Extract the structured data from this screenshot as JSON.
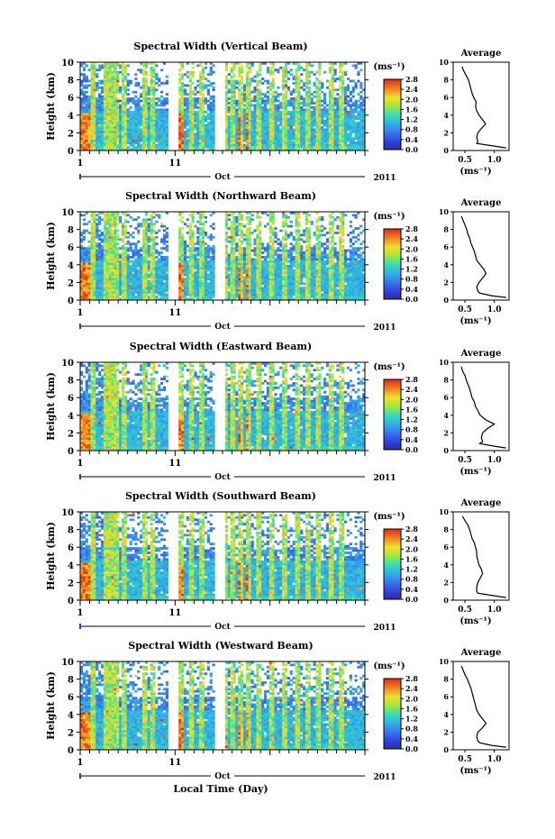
{
  "figure": {
    "xlabel": "Local Time (Day)",
    "year_label": "2011",
    "month_label": "Oct",
    "colorbar_unit_label": "(ms⁻¹)",
    "average_title": "Average",
    "average_xlabel": "(ms⁻¹)"
  },
  "chart_data": [
    {
      "type": "heatmap",
      "title": "Spectral Width (Vertical Beam)",
      "ylabel": "Height (km)",
      "ylim": [
        0,
        10
      ],
      "yticks": [
        "0",
        "2",
        "4",
        "6",
        "8",
        "10"
      ],
      "xlim": [
        1,
        31
      ],
      "xticks": [
        "1",
        "11"
      ],
      "colorbar": {
        "label": "(ms⁻¹)",
        "range": [
          0,
          2.8
        ],
        "ticks": [
          "0.0",
          "0.4",
          "0.8",
          "1.2",
          "1.6",
          "2.0",
          "2.4",
          "2.8"
        ]
      },
      "average_profile": {
        "title": "Average",
        "xlabel": "(ms⁻¹)",
        "xticks": [
          "0.5",
          "1.0"
        ],
        "xlim": [
          0.3,
          1.25
        ],
        "height": [
          0.3,
          0.5,
          0.8,
          1.0,
          1.5,
          2.0,
          2.5,
          3.0,
          3.5,
          4.0,
          4.5,
          5.0,
          5.5,
          6.0,
          6.5,
          7.0,
          7.5,
          8.0,
          8.5,
          9.0,
          9.5
        ],
        "value": [
          1.2,
          1.0,
          0.7,
          0.72,
          0.7,
          0.72,
          0.78,
          0.85,
          0.8,
          0.74,
          0.7,
          0.68,
          0.69,
          0.65,
          0.62,
          0.6,
          0.58,
          0.56,
          0.52,
          0.48,
          0.45
        ]
      }
    },
    {
      "type": "heatmap",
      "title": "Spectral Width (Northward Beam)",
      "ylabel": "Height (km)",
      "ylim": [
        0,
        10
      ],
      "yticks": [
        "0",
        "2",
        "4",
        "6",
        "8",
        "10"
      ],
      "xlim": [
        1,
        31
      ],
      "xticks": [
        "1",
        "11"
      ],
      "colorbar": {
        "label": "(ms⁻¹)",
        "range": [
          0,
          2.8
        ],
        "ticks": [
          "0.0",
          "0.4",
          "0.8",
          "1.2",
          "1.6",
          "2.0",
          "2.4",
          "2.8"
        ]
      },
      "average_profile": {
        "title": "Average",
        "xlabel": "(ms⁻¹)",
        "xticks": [
          "0.5",
          "1.0"
        ],
        "xlim": [
          0.3,
          1.25
        ],
        "height": [
          0.3,
          0.5,
          0.8,
          1.0,
          1.5,
          2.0,
          2.5,
          3.0,
          3.5,
          4.0,
          4.5,
          5.0,
          5.5,
          6.0,
          6.5,
          7.0,
          7.5,
          8.0,
          8.5,
          9.0,
          9.5
        ],
        "value": [
          1.2,
          0.95,
          0.75,
          0.72,
          0.7,
          0.74,
          0.8,
          0.86,
          0.82,
          0.76,
          0.7,
          0.68,
          0.66,
          0.63,
          0.6,
          0.58,
          0.55,
          0.53,
          0.5,
          0.47,
          0.44
        ]
      }
    },
    {
      "type": "heatmap",
      "title": "Spectral Width (Eastward Beam)",
      "ylabel": "Height (km)",
      "ylim": [
        0,
        10
      ],
      "yticks": [
        "0",
        "2",
        "4",
        "6",
        "8",
        "10"
      ],
      "xlim": [
        1,
        31
      ],
      "xticks": [
        "1",
        "11"
      ],
      "colorbar": {
        "label": "(ms⁻¹)",
        "range": [
          0,
          2.8
        ],
        "ticks": [
          "0.0",
          "0.4",
          "0.8",
          "1.2",
          "1.6",
          "2.0",
          "2.4",
          "2.8"
        ]
      },
      "average_profile": {
        "title": "Average",
        "xlabel": "(ms⁻¹)",
        "xticks": [
          "0.5",
          "1.0"
        ],
        "xlim": [
          0.3,
          1.25
        ],
        "height": [
          0.3,
          0.5,
          0.8,
          1.0,
          1.5,
          2.0,
          2.5,
          3.0,
          3.5,
          4.0,
          4.5,
          5.0,
          5.5,
          6.0,
          6.5,
          7.0,
          7.5,
          8.0,
          8.5,
          9.0,
          9.5
        ],
        "value": [
          1.2,
          1.0,
          0.75,
          0.8,
          0.78,
          0.8,
          0.88,
          1.0,
          0.85,
          0.76,
          0.72,
          0.68,
          0.66,
          0.62,
          0.6,
          0.58,
          0.55,
          0.52,
          0.5,
          0.46,
          0.44
        ]
      }
    },
    {
      "type": "heatmap",
      "title": "Spectral Width (Southward Beam)",
      "ylabel": "Height (km)",
      "ylim": [
        0,
        10
      ],
      "yticks": [
        "0",
        "2",
        "4",
        "6",
        "8",
        "10"
      ],
      "xlim": [
        1,
        31
      ],
      "xticks": [
        "1",
        "11"
      ],
      "colorbar": {
        "label": "(ms⁻¹)",
        "range": [
          0,
          2.8
        ],
        "ticks": [
          "0.0",
          "0.4",
          "0.8",
          "1.2",
          "1.6",
          "2.0",
          "2.4",
          "2.8"
        ]
      },
      "average_profile": {
        "title": "Average",
        "xlabel": "(ms⁻¹)",
        "xticks": [
          "0.5",
          "1.0"
        ],
        "xlim": [
          0.3,
          1.25
        ],
        "height": [
          0.3,
          0.5,
          0.8,
          1.0,
          1.5,
          2.0,
          2.5,
          3.0,
          3.5,
          4.0,
          4.5,
          5.0,
          5.5,
          6.0,
          6.5,
          7.0,
          7.5,
          8.0,
          8.5,
          9.0,
          9.5
        ],
        "value": [
          1.2,
          1.0,
          0.72,
          0.7,
          0.7,
          0.72,
          0.76,
          0.8,
          0.78,
          0.74,
          0.72,
          0.7,
          0.7,
          0.68,
          0.66,
          0.62,
          0.6,
          0.58,
          0.55,
          0.5,
          0.46
        ]
      }
    },
    {
      "type": "heatmap",
      "title": "Spectral Width (Westward Beam)",
      "ylabel": "Height (km)",
      "ylim": [
        0,
        10
      ],
      "yticks": [
        "0",
        "2",
        "4",
        "6",
        "8",
        "10"
      ],
      "xlim": [
        1,
        31
      ],
      "xticks": [
        "1",
        "11"
      ],
      "colorbar": {
        "label": "(ms⁻¹)",
        "range": [
          0,
          2.8
        ],
        "ticks": [
          "0.0",
          "0.4",
          "0.8",
          "1.2",
          "1.6",
          "2.0",
          "2.4",
          "2.8"
        ]
      },
      "average_profile": {
        "title": "Average",
        "xlabel": "(ms⁻¹)",
        "xticks": [
          "0.5",
          "1.0"
        ],
        "xlim": [
          0.3,
          1.25
        ],
        "height": [
          0.3,
          0.5,
          0.8,
          1.0,
          1.5,
          2.0,
          2.5,
          3.0,
          3.5,
          4.0,
          4.5,
          5.0,
          5.5,
          6.0,
          6.5,
          7.0,
          7.5,
          8.0,
          8.5,
          9.0,
          9.5
        ],
        "value": [
          1.2,
          0.95,
          0.75,
          0.72,
          0.7,
          0.72,
          0.8,
          0.86,
          0.8,
          0.74,
          0.7,
          0.68,
          0.66,
          0.64,
          0.62,
          0.6,
          0.57,
          0.54,
          0.5,
          0.47,
          0.44
        ]
      }
    }
  ]
}
